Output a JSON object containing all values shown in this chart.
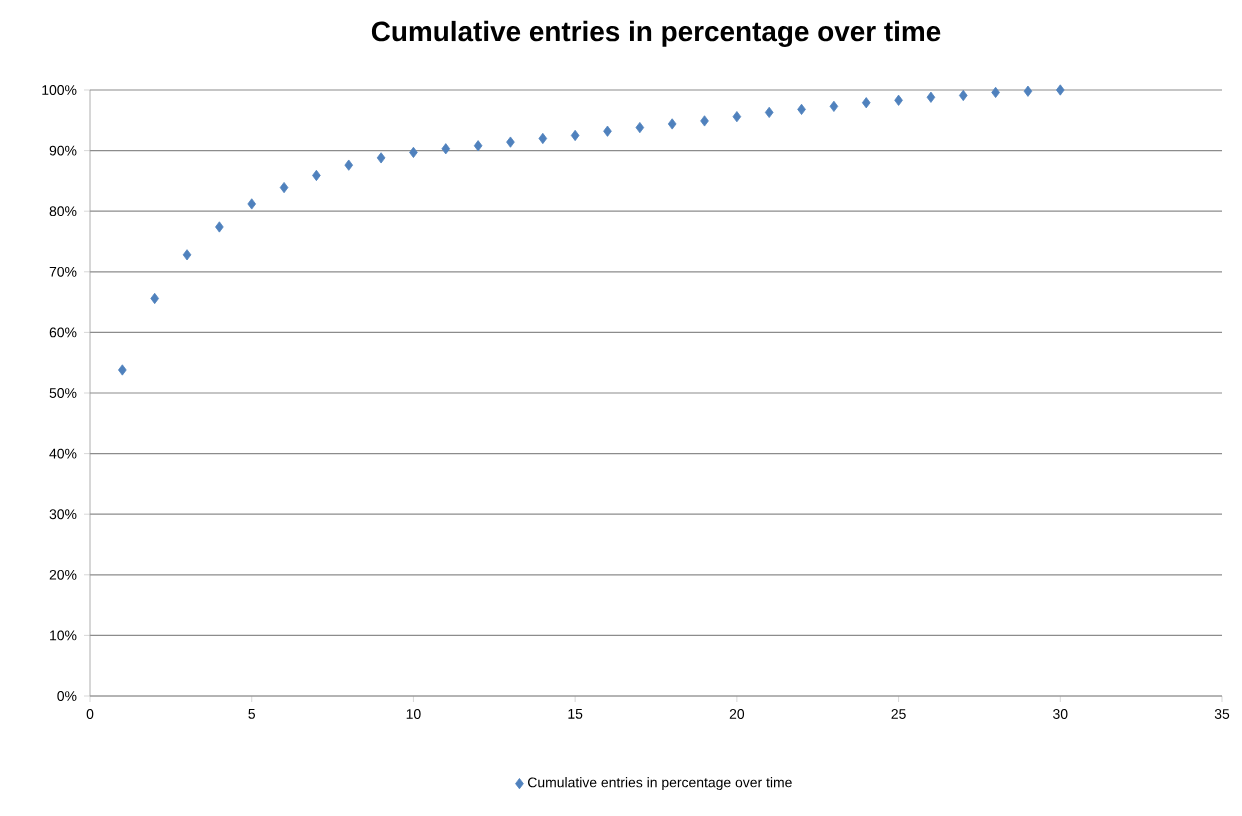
{
  "chart_data": {
    "type": "scatter",
    "title": "Cumulative entries in percentage over time",
    "x": [
      1,
      2,
      3,
      4,
      5,
      6,
      7,
      8,
      9,
      10,
      11,
      12,
      13,
      14,
      15,
      16,
      17,
      18,
      19,
      20,
      21,
      22,
      23,
      24,
      25,
      26,
      27,
      28,
      29,
      30
    ],
    "series": [
      {
        "name": "Cumulative entries in percentage over time",
        "color": "#4f81bd",
        "values": [
          53.8,
          65.6,
          72.8,
          77.4,
          81.2,
          83.9,
          85.9,
          87.6,
          88.8,
          89.7,
          90.3,
          90.8,
          91.4,
          92.0,
          92.5,
          93.2,
          93.8,
          94.4,
          94.9,
          95.6,
          96.3,
          96.8,
          97.3,
          97.9,
          98.3,
          98.8,
          99.1,
          99.6,
          99.8,
          100
        ]
      }
    ],
    "xlim": [
      0,
      35
    ],
    "xticks": [
      0,
      5,
      10,
      15,
      20,
      25,
      30,
      35
    ],
    "ylim": [
      0,
      100
    ],
    "yticks": [
      {
        "value": 0,
        "label": "0%"
      },
      {
        "value": 10,
        "label": "10%"
      },
      {
        "value": 20,
        "label": "20%"
      },
      {
        "value": 30,
        "label": "30%"
      },
      {
        "value": 40,
        "label": "40%"
      },
      {
        "value": 50,
        "label": "50%"
      },
      {
        "value": 60,
        "label": "60%"
      },
      {
        "value": 70,
        "label": "70%"
      },
      {
        "value": 80,
        "label": "80%"
      },
      {
        "value": 90,
        "label": "90%"
      },
      {
        "value": 100,
        "label": "100%"
      }
    ],
    "grid": "y",
    "legend": "bottom",
    "marker": "diamond"
  }
}
